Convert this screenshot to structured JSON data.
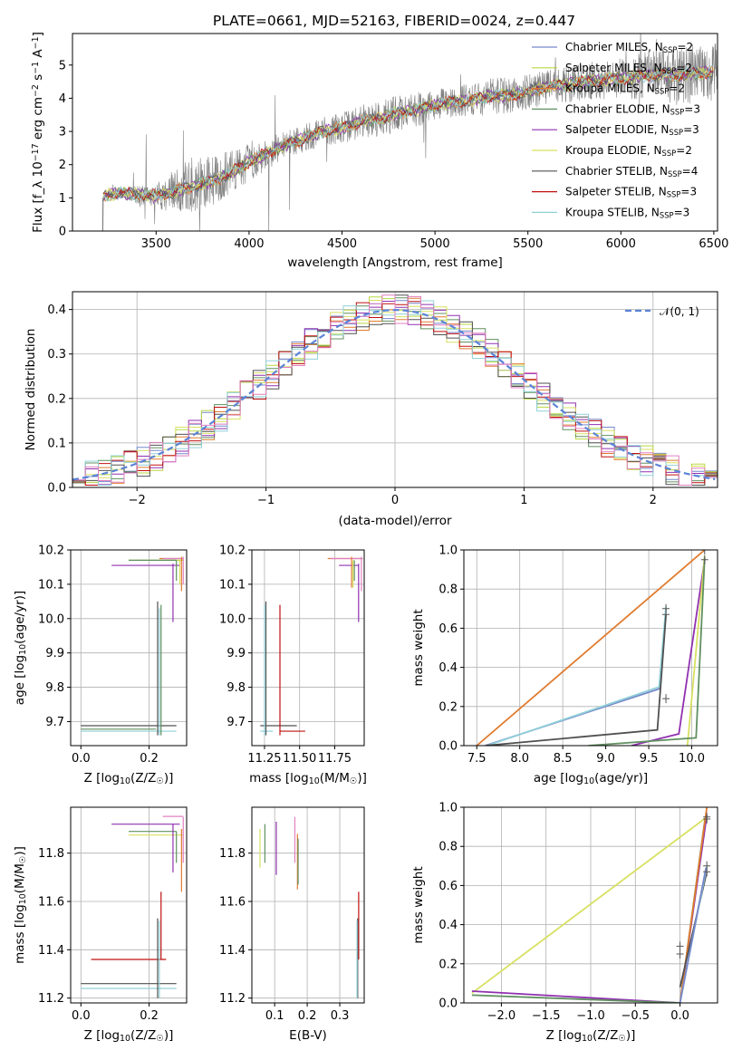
{
  "figure_title": "PLATE=0661, MJD=52163, FIBERID=0024, z=0.447",
  "colors": {
    "data": "#808080",
    "chabrier_miles": "#7788cc",
    "salpeter_miles": "#b8d840",
    "kroupa_miles": "#e07c30",
    "chabrier_elodie": "#609060",
    "salpeter_elodie": "#9030b0",
    "kroupa_elodie": "#d8e060",
    "chabrier_stelib": "#505050",
    "salpeter_stelib": "#c01010",
    "kroupa_stelib": "#90d0d8",
    "normal_curve": "#5b84d6",
    "pink": "#e080c0"
  },
  "chart_data": [
    {
      "id": "spectrum",
      "type": "line",
      "title": "PLATE=0661, MJD=52163, FIBERID=0024, z=0.447",
      "xlabel": "wavelength [Angstrom, rest frame]",
      "ylabel": "Flux [f_λ 10^-17 erg cm^-2 s^-1 A^-1]",
      "xlim": [
        3050,
        6520
      ],
      "ylim": [
        0,
        5.95
      ],
      "xticks": [
        3500,
        4000,
        4500,
        5000,
        5500,
        6000,
        6500
      ],
      "yticks": [
        0,
        1,
        2,
        3,
        4,
        5
      ],
      "legend_position": "top-right",
      "legend": [
        {
          "key": "chabrier_miles",
          "label": "Chabrier MILES, N_SSP=2"
        },
        {
          "key": "salpeter_miles",
          "label": "Salpeter MILES, N_SSP=2"
        },
        {
          "key": "kroupa_miles",
          "label": "Kroupa MILES, N_SSP=2"
        },
        {
          "key": "chabrier_elodie",
          "label": "Chabrier ELODIE, N_SSP=3"
        },
        {
          "key": "salpeter_elodie",
          "label": "Salpeter ELODIE, N_SSP=3"
        },
        {
          "key": "kroupa_elodie",
          "label": "Kroupa ELODIE, N_SSP=2"
        },
        {
          "key": "chabrier_stelib",
          "label": "Chabrier STELIB, N_SSP=4"
        },
        {
          "key": "salpeter_stelib",
          "label": "Salpeter STELIB, N_SSP=3"
        },
        {
          "key": "kroupa_stelib",
          "label": "Kroupa STELIB, N_SSP=3"
        }
      ],
      "continuum": {
        "x": [
          3210,
          3300,
          3400,
          3500,
          3600,
          3700,
          3800,
          3900,
          4000,
          4100,
          4200,
          4300,
          4400,
          4500,
          4600,
          4700,
          4800,
          4900,
          5000,
          5100,
          5200,
          5300,
          5400,
          5500,
          5600,
          5700,
          5800,
          5900,
          6000,
          6100,
          6200,
          6300,
          6400,
          6500
        ],
        "y": [
          1.05,
          1.15,
          1.1,
          1.05,
          1.2,
          1.35,
          1.5,
          1.75,
          2.1,
          2.35,
          2.6,
          2.8,
          3.0,
          3.1,
          3.3,
          3.4,
          3.55,
          3.65,
          3.8,
          3.9,
          3.95,
          4.05,
          4.1,
          4.2,
          4.35,
          4.4,
          4.5,
          4.55,
          4.6,
          4.65,
          4.7,
          4.7,
          4.75,
          4.8
        ]
      },
      "noise_scale": {
        "x": [
          3210,
          3500,
          3700,
          3800,
          4000,
          4200,
          4600,
          4800,
          5000,
          5300,
          5600,
          6000,
          6300,
          6500
        ],
        "y": [
          0.05,
          0.4,
          0.9,
          0.75,
          0.6,
          0.4,
          0.5,
          0.6,
          0.45,
          0.55,
          0.55,
          0.6,
          0.9,
          0.9
        ]
      },
      "model_wavelength_range": [
        3210,
        6500
      ]
    },
    {
      "id": "residuals",
      "type": "line",
      "xlabel": "(data-model)/error",
      "ylabel": "Normed distribution",
      "xlim": [
        -2.5,
        2.5
      ],
      "ylim": [
        0,
        0.44
      ],
      "xticks": [
        -2,
        -1,
        0,
        1,
        2
      ],
      "yticks": [
        0.0,
        0.1,
        0.2,
        0.3,
        0.4
      ],
      "legend_position": "top-right",
      "legend": [
        {
          "key": "normal_curve",
          "label": "𝒩(0, 1)"
        }
      ],
      "curve": {
        "name": "𝒩(0, 1)",
        "mean": 0,
        "sigma": 1
      }
    },
    {
      "id": "age_vs_Z",
      "type": "scatter",
      "xlabel": "Z [log10(Z/Z☉)]",
      "ylabel": "age [log10(age/yr)]",
      "xlim": [
        -0.03,
        0.31
      ],
      "ylim": [
        9.63,
        10.2
      ],
      "xticks": [
        0.0,
        0.2
      ],
      "yticks": [
        9.7,
        9.8,
        9.9,
        10.0,
        10.1,
        10.2
      ],
      "hlines": [
        {
          "key": "salpeter_elodie",
          "y": 10.155,
          "x0": 0.09,
          "x1": 0.29
        },
        {
          "key": "salpeter_miles",
          "y": 10.17,
          "x0": 0.14,
          "x1": 0.3
        },
        {
          "key": "chabrier_elodie",
          "y": 10.17,
          "x0": 0.14,
          "x1": 0.28
        },
        {
          "key": "kroupa_miles",
          "y": 10.175,
          "x0": 0.23,
          "x1": 0.3
        },
        {
          "key": "pink",
          "y": 10.175,
          "x0": 0.24,
          "x1": 0.3
        },
        {
          "key": "chabrier_stelib",
          "y": 9.688,
          "x0": 0.0,
          "x1": 0.28
        },
        {
          "key": "chabrier_elodie",
          "y": 9.678,
          "x0": 0.0,
          "x1": 0.22
        },
        {
          "key": "kroupa_stelib",
          "y": 9.672,
          "x0": 0.0,
          "x1": 0.28
        }
      ],
      "vlines": [
        {
          "key": "salpeter_elodie",
          "x": 0.27,
          "y0": 9.99,
          "y1": 10.16
        },
        {
          "key": "chabrier_elodie",
          "x": 0.28,
          "y0": 10.11,
          "y1": 10.17
        },
        {
          "key": "kroupa_miles",
          "x": 0.295,
          "y0": 10.08,
          "y1": 10.18
        },
        {
          "key": "pink",
          "x": 0.3,
          "y0": 10.1,
          "y1": 10.18
        },
        {
          "key": "kroupa_elodie",
          "x": 0.29,
          "y0": 10.1,
          "y1": 10.17
        },
        {
          "key": "chabrier_stelib",
          "x": 0.225,
          "y0": 9.66,
          "y1": 10.05
        },
        {
          "key": "chabrier_elodie",
          "x": 0.235,
          "y0": 9.66,
          "y1": 10.04
        },
        {
          "key": "kroupa_stelib",
          "x": 0.23,
          "y0": 9.66,
          "y1": 10.03
        }
      ]
    },
    {
      "id": "age_vs_mass",
      "type": "scatter",
      "xlabel": "mass [log10(M/M☉)]",
      "ylabel": "",
      "xlim": [
        11.16,
        11.96
      ],
      "ylim": [
        9.63,
        10.2
      ],
      "xticks": [
        11.25,
        11.5,
        11.75
      ],
      "yticks": [
        9.7,
        9.8,
        9.9,
        10.0,
        10.1,
        10.2
      ],
      "hlines": [
        {
          "key": "salpeter_elodie",
          "y": 10.155,
          "x0": 11.78,
          "x1": 11.92
        },
        {
          "key": "kroupa_miles",
          "y": 10.175,
          "x0": 11.7,
          "x1": 11.95
        },
        {
          "key": "pink",
          "y": 10.175,
          "x0": 11.72,
          "x1": 11.95
        },
        {
          "key": "chabrier_stelib",
          "y": 9.688,
          "x0": 11.22,
          "x1": 11.48
        },
        {
          "key": "salpeter_stelib",
          "y": 9.672,
          "x0": 11.36,
          "x1": 11.54
        },
        {
          "key": "kroupa_stelib",
          "y": 9.672,
          "x0": 11.22,
          "x1": 11.31
        }
      ],
      "vlines": [
        {
          "key": "salpeter_elodie",
          "x": 11.92,
          "y0": 9.99,
          "y1": 10.16
        },
        {
          "key": "kroupa_miles",
          "x": 11.87,
          "y0": 10.09,
          "y1": 10.18
        },
        {
          "key": "kroupa_elodie",
          "x": 11.88,
          "y0": 10.09,
          "y1": 10.17
        },
        {
          "key": "pink",
          "x": 11.94,
          "y0": 10.08,
          "y1": 10.18
        },
        {
          "key": "chabrier_elodie",
          "x": 11.89,
          "y0": 10.11,
          "y1": 10.17
        },
        {
          "key": "chabrier_stelib",
          "x": 11.26,
          "y0": 9.66,
          "y1": 10.05
        },
        {
          "key": "kroupa_stelib",
          "x": 11.25,
          "y0": 9.66,
          "y1": 10.04
        },
        {
          "key": "salpeter_stelib",
          "x": 11.36,
          "y0": 9.66,
          "y1": 10.04
        }
      ]
    },
    {
      "id": "mass_weight_vs_age",
      "type": "line",
      "xlabel": "age [log10(age/yr)]",
      "ylabel": "mass weight",
      "xlim": [
        7.35,
        10.3
      ],
      "ylim": [
        0,
        1.0
      ],
      "xticks": [
        7.5,
        8.0,
        8.5,
        9.0,
        9.5,
        10.0
      ],
      "yticks": [
        0.0,
        0.2,
        0.4,
        0.6,
        0.8,
        1.0
      ],
      "series": [
        {
          "key": "kroupa_miles",
          "x": [
            7.5,
            10.15
          ],
          "y": [
            0.0,
            1.0
          ]
        },
        {
          "key": "chabrier_miles",
          "x": [
            7.6,
            9.62,
            9.7
          ],
          "y": [
            0.0,
            0.29,
            0.7
          ]
        },
        {
          "key": "kroupa_stelib",
          "x": [
            7.62,
            9.62,
            9.7
          ],
          "y": [
            0.0,
            0.3,
            0.71
          ]
        },
        {
          "key": "chabrier_stelib",
          "x": [
            7.6,
            9.6,
            9.7
          ],
          "y": [
            0.0,
            0.08,
            0.67
          ]
        },
        {
          "key": "salpeter_elodie",
          "x": [
            9.3,
            9.85,
            10.15
          ],
          "y": [
            0.0,
            0.06,
            0.95
          ]
        },
        {
          "key": "kroupa_elodie",
          "x": [
            9.95,
            10.15
          ],
          "y": [
            0.0,
            0.97
          ]
        },
        {
          "key": "chabrier_elodie",
          "x": [
            8.8,
            10.05,
            10.15
          ],
          "y": [
            0.0,
            0.04,
            0.96
          ]
        }
      ],
      "error_marks": [
        {
          "x": 9.7,
          "y": 0.7
        },
        {
          "x": 9.7,
          "y": 0.67
        },
        {
          "x": 9.7,
          "y": 0.24
        },
        {
          "x": 10.15,
          "y": 0.95
        },
        {
          "x": 10.15,
          "y": 1.0
        }
      ]
    },
    {
      "id": "mass_vs_Z",
      "type": "scatter",
      "xlabel": "Z [log10(Z/Z☉)]",
      "ylabel": "mass [log10(M/M☉)]",
      "xlim": [
        -0.03,
        0.31
      ],
      "ylim": [
        11.18,
        11.99
      ],
      "xticks": [
        0.0,
        0.2
      ],
      "yticks": [
        11.2,
        11.4,
        11.6,
        11.8
      ],
      "hlines": [
        {
          "key": "pink",
          "y": 11.952,
          "x0": 0.24,
          "x1": 0.3
        },
        {
          "key": "salpeter_elodie",
          "y": 11.92,
          "x0": 0.09,
          "x1": 0.29
        },
        {
          "key": "chabrier_elodie",
          "y": 11.89,
          "x0": 0.14,
          "x1": 0.28
        },
        {
          "key": "kroupa_elodie",
          "y": 11.875,
          "x0": 0.14,
          "x1": 0.3
        },
        {
          "key": "salpeter_stelib",
          "y": 11.36,
          "x0": 0.03,
          "x1": 0.25
        },
        {
          "key": "chabrier_stelib",
          "y": 11.26,
          "x0": 0.0,
          "x1": 0.28
        },
        {
          "key": "kroupa_stelib",
          "y": 11.24,
          "x0": 0.0,
          "x1": 0.28
        }
      ],
      "vlines": [
        {
          "key": "salpeter_elodie",
          "x": 0.27,
          "y0": 11.72,
          "y1": 11.92
        },
        {
          "key": "kroupa_miles",
          "x": 0.295,
          "y0": 11.64,
          "y1": 11.9
        },
        {
          "key": "pink",
          "x": 0.3,
          "y0": 11.76,
          "y1": 11.95
        },
        {
          "key": "chabrier_elodie",
          "x": 0.28,
          "y0": 11.76,
          "y1": 11.89
        },
        {
          "key": "salpeter_stelib",
          "x": 0.235,
          "y0": 11.36,
          "y1": 11.64
        },
        {
          "key": "chabrier_stelib",
          "x": 0.225,
          "y0": 11.2,
          "y1": 11.53
        },
        {
          "key": "kroupa_stelib",
          "x": 0.23,
          "y0": 11.2,
          "y1": 11.52
        }
      ]
    },
    {
      "id": "mass_vs_EBV",
      "type": "scatter",
      "xlabel": "E(B-V)",
      "ylabel": "",
      "xlim": [
        0.03,
        0.375
      ],
      "ylim": [
        11.18,
        11.99
      ],
      "xticks": [
        0.1,
        0.2,
        0.3
      ],
      "yticks": [
        11.2,
        11.4,
        11.6,
        11.8
      ],
      "vlines": [
        {
          "key": "kroupa_elodie",
          "x": 0.055,
          "y0": 11.74,
          "y1": 11.9
        },
        {
          "key": "chabrier_elodie",
          "x": 0.07,
          "y0": 11.76,
          "y1": 11.92
        },
        {
          "key": "salpeter_elodie",
          "x": 0.105,
          "y0": 11.71,
          "y1": 11.93
        },
        {
          "key": "pink",
          "x": 0.162,
          "y0": 11.76,
          "y1": 11.95
        },
        {
          "key": "kroupa_miles",
          "x": 0.17,
          "y0": 11.65,
          "y1": 11.88
        },
        {
          "key": "chabrier_elodie",
          "x": 0.172,
          "y0": 11.67,
          "y1": 11.86
        },
        {
          "key": "salpeter_stelib",
          "x": 0.358,
          "y0": 11.36,
          "y1": 11.64
        },
        {
          "key": "chabrier_stelib",
          "x": 0.355,
          "y0": 11.2,
          "y1": 11.53
        },
        {
          "key": "kroupa_stelib",
          "x": 0.353,
          "y0": 11.2,
          "y1": 11.52
        }
      ]
    },
    {
      "id": "mass_weight_vs_Z",
      "type": "line",
      "xlabel": "Z [log10(Z/Z☉)]",
      "ylabel": "mass weight",
      "xlim": [
        -2.42,
        0.42
      ],
      "ylim": [
        0,
        1.0
      ],
      "xticks": [
        -2.0,
        -1.5,
        -1.0,
        -0.5,
        0.0
      ],
      "yticks": [
        0.0,
        0.2,
        0.4,
        0.6,
        0.8,
        1.0
      ],
      "series": [
        {
          "key": "kroupa_elodie",
          "x": [
            -2.33,
            0.3
          ],
          "y": [
            0.05,
            0.95
          ]
        },
        {
          "key": "salpeter_elodie",
          "x": [
            -2.33,
            0.0,
            0.3
          ],
          "y": [
            0.06,
            0.0,
            0.96
          ]
        },
        {
          "key": "chabrier_elodie",
          "x": [
            -2.33,
            0.0,
            0.28
          ],
          "y": [
            0.04,
            0.0,
            0.94
          ]
        },
        {
          "key": "kroupa_miles",
          "x": [
            0.0,
            0.3
          ],
          "y": [
            0.0,
            1.0
          ]
        },
        {
          "key": "chabrier_stelib",
          "x": [
            0.0,
            0.3
          ],
          "y": [
            0.08,
            0.67
          ]
        },
        {
          "key": "kroupa_stelib",
          "x": [
            0.0,
            0.3
          ],
          "y": [
            0.0,
            0.7
          ]
        },
        {
          "key": "chabrier_miles",
          "x": [
            0.0,
            0.29
          ],
          "y": [
            0.0,
            0.69
          ]
        }
      ],
      "error_marks": [
        {
          "x": 0.3,
          "y": 0.7
        },
        {
          "x": 0.3,
          "y": 0.67
        },
        {
          "x": 0.0,
          "y": 0.29
        },
        {
          "x": 0.0,
          "y": 0.25
        },
        {
          "x": 0.3,
          "y": 0.95
        },
        {
          "x": 0.3,
          "y": 0.94
        }
      ]
    }
  ]
}
